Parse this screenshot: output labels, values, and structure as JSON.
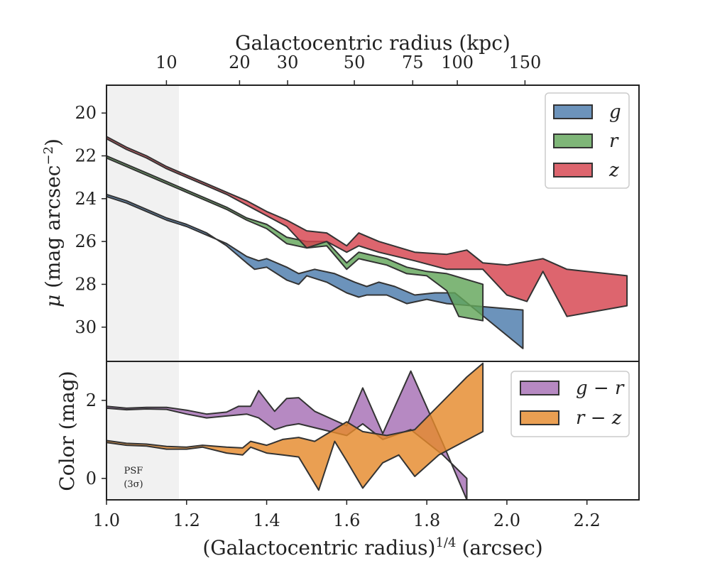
{
  "chart_data": [
    {
      "panel": "top",
      "type": "area",
      "top_axis": {
        "label": "Galactocentric radius (kpc)",
        "tick_labels": [
          "10",
          "20",
          "30",
          "50",
          "75",
          "100",
          "150"
        ],
        "tick_values_kpc": [
          10,
          20,
          30,
          50,
          75,
          100,
          150
        ]
      },
      "ylabel": "μ (mag arcsec⁻²)",
      "ylim": [
        31.6,
        18.7
      ],
      "y_inverted": true,
      "yticks": [
        20,
        22,
        24,
        26,
        28,
        30
      ],
      "xlim": [
        1.0,
        2.33
      ],
      "shaded_region": {
        "x": [
          1.0,
          1.18
        ],
        "color": "#f1f1f1"
      },
      "legend": {
        "placement": "top-right",
        "entries": [
          "g",
          "r",
          "z"
        ]
      },
      "series": [
        {
          "name": "g",
          "color": "#4c7bac",
          "upper": [
            [
              1.0,
              23.8
            ],
            [
              1.05,
              24.1
            ],
            [
              1.1,
              24.5
            ],
            [
              1.15,
              24.9
            ],
            [
              1.2,
              25.2
            ],
            [
              1.25,
              25.6
            ],
            [
              1.3,
              26.2
            ],
            [
              1.35,
              27.0
            ],
            [
              1.37,
              27.3
            ],
            [
              1.4,
              27.2
            ],
            [
              1.45,
              27.8
            ],
            [
              1.48,
              28.0
            ],
            [
              1.5,
              27.6
            ],
            [
              1.55,
              27.9
            ],
            [
              1.6,
              28.4
            ],
            [
              1.63,
              28.6
            ],
            [
              1.65,
              28.5
            ],
            [
              1.7,
              28.5
            ],
            [
              1.75,
              28.9
            ],
            [
              1.8,
              28.7
            ],
            [
              1.85,
              28.9
            ],
            [
              2.04,
              29.2
            ]
          ],
          "lower": [
            [
              1.0,
              23.9
            ],
            [
              1.05,
              24.2
            ],
            [
              1.1,
              24.6
            ],
            [
              1.15,
              25.0
            ],
            [
              1.2,
              25.3
            ],
            [
              1.25,
              25.7
            ],
            [
              1.3,
              26.1
            ],
            [
              1.35,
              26.7
            ],
            [
              1.38,
              26.9
            ],
            [
              1.4,
              26.8
            ],
            [
              1.45,
              27.2
            ],
            [
              1.48,
              27.5
            ],
            [
              1.52,
              27.3
            ],
            [
              1.57,
              27.5
            ],
            [
              1.62,
              27.9
            ],
            [
              1.65,
              28.1
            ],
            [
              1.68,
              27.9
            ],
            [
              1.72,
              28.1
            ],
            [
              1.77,
              28.5
            ],
            [
              1.82,
              28.4
            ],
            [
              1.87,
              28.4
            ],
            [
              2.04,
              31.0
            ]
          ]
        },
        {
          "name": "r",
          "color": "#63a65a",
          "upper": [
            [
              1.0,
              22.0
            ],
            [
              1.05,
              22.4
            ],
            [
              1.1,
              22.8
            ],
            [
              1.15,
              23.2
            ],
            [
              1.2,
              23.6
            ],
            [
              1.25,
              24.0
            ],
            [
              1.3,
              24.4
            ],
            [
              1.35,
              24.9
            ],
            [
              1.4,
              25.2
            ],
            [
              1.45,
              25.8
            ],
            [
              1.5,
              26.0
            ],
            [
              1.55,
              26.0
            ],
            [
              1.6,
              27.0
            ],
            [
              1.63,
              26.5
            ],
            [
              1.7,
              26.8
            ],
            [
              1.75,
              27.2
            ],
            [
              1.8,
              27.4
            ],
            [
              1.85,
              27.5
            ],
            [
              1.94,
              28.0
            ]
          ],
          "lower": [
            [
              1.0,
              22.1
            ],
            [
              1.05,
              22.5
            ],
            [
              1.1,
              22.9
            ],
            [
              1.15,
              23.3
            ],
            [
              1.2,
              23.7
            ],
            [
              1.25,
              24.1
            ],
            [
              1.3,
              24.5
            ],
            [
              1.35,
              25.0
            ],
            [
              1.4,
              25.4
            ],
            [
              1.45,
              26.1
            ],
            [
              1.5,
              26.3
            ],
            [
              1.55,
              26.2
            ],
            [
              1.6,
              27.3
            ],
            [
              1.63,
              26.8
            ],
            [
              1.7,
              27.1
            ],
            [
              1.75,
              27.5
            ],
            [
              1.8,
              27.6
            ],
            [
              1.85,
              28.3
            ],
            [
              1.88,
              29.5
            ],
            [
              1.94,
              29.7
            ]
          ]
        },
        {
          "name": "z",
          "color": "#d5434e",
          "upper": [
            [
              1.0,
              21.1
            ],
            [
              1.05,
              21.6
            ],
            [
              1.1,
              22.0
            ],
            [
              1.15,
              22.5
            ],
            [
              1.2,
              22.9
            ],
            [
              1.25,
              23.3
            ],
            [
              1.3,
              23.7
            ],
            [
              1.35,
              24.1
            ],
            [
              1.4,
              24.6
            ],
            [
              1.45,
              25.0
            ],
            [
              1.5,
              25.5
            ],
            [
              1.55,
              25.6
            ],
            [
              1.6,
              26.2
            ],
            [
              1.63,
              25.6
            ],
            [
              1.68,
              26.0
            ],
            [
              1.77,
              26.5
            ],
            [
              1.85,
              26.6
            ],
            [
              1.9,
              26.4
            ],
            [
              1.94,
              27.0
            ],
            [
              2.0,
              27.1
            ],
            [
              2.09,
              26.8
            ],
            [
              2.15,
              27.3
            ],
            [
              2.3,
              27.6
            ]
          ],
          "lower": [
            [
              1.0,
              21.2
            ],
            [
              1.05,
              21.7
            ],
            [
              1.1,
              22.1
            ],
            [
              1.15,
              22.6
            ],
            [
              1.2,
              23.0
            ],
            [
              1.25,
              23.4
            ],
            [
              1.3,
              23.8
            ],
            [
              1.35,
              24.3
            ],
            [
              1.4,
              24.8
            ],
            [
              1.45,
              25.3
            ],
            [
              1.5,
              26.3
            ],
            [
              1.55,
              26.0
            ],
            [
              1.6,
              26.5
            ],
            [
              1.63,
              26.2
            ],
            [
              1.68,
              26.5
            ],
            [
              1.77,
              26.9
            ],
            [
              1.85,
              27.3
            ],
            [
              1.94,
              27.3
            ],
            [
              2.0,
              28.5
            ],
            [
              2.05,
              28.8
            ],
            [
              2.09,
              27.4
            ],
            [
              2.15,
              29.5
            ],
            [
              2.3,
              29.0
            ]
          ]
        }
      ]
    },
    {
      "panel": "bottom",
      "type": "area",
      "xlabel": "(Galactocentric radius)^1/4 (arcsec)",
      "xlabel_base": "(Galactocentric radius)",
      "xlabel_sup": "1/4",
      "xlabel_unit": "(arcsec)",
      "xlim": [
        1.0,
        2.33
      ],
      "xticks": [
        1.0,
        1.2,
        1.4,
        1.6,
        1.8,
        2.0,
        2.2
      ],
      "xtick_labels": [
        "1.0",
        "1.2",
        "1.4",
        "1.6",
        "1.8",
        "2.0",
        "2.2"
      ],
      "ylabel": "Color (mag)",
      "ylim": [
        -0.55,
        3.0
      ],
      "yticks": [
        0,
        2
      ],
      "shaded_region": {
        "x": [
          1.0,
          1.18
        ],
        "color": "#f1f1f1"
      },
      "annotation": {
        "line1": "PSF",
        "line2": "(3σ)"
      },
      "legend": {
        "placement": "top-right",
        "entries": [
          "g − r",
          "r − z"
        ]
      },
      "series": [
        {
          "name": "g − r",
          "color": "#a66fb5",
          "upper": [
            [
              1.0,
              1.85
            ],
            [
              1.05,
              1.8
            ],
            [
              1.1,
              1.82
            ],
            [
              1.15,
              1.82
            ],
            [
              1.2,
              1.75
            ],
            [
              1.25,
              1.65
            ],
            [
              1.3,
              1.7
            ],
            [
              1.33,
              1.85
            ],
            [
              1.36,
              1.85
            ],
            [
              1.38,
              2.25
            ],
            [
              1.42,
              1.72
            ],
            [
              1.45,
              2.05
            ],
            [
              1.48,
              2.07
            ],
            [
              1.52,
              1.72
            ],
            [
              1.6,
              1.35
            ],
            [
              1.64,
              2.32
            ],
            [
              1.69,
              1.15
            ],
            [
              1.76,
              2.75
            ],
            [
              1.84,
              0.9
            ],
            [
              1.9,
              -0.55
            ]
          ],
          "lower": [
            [
              1.0,
              1.8
            ],
            [
              1.05,
              1.76
            ],
            [
              1.1,
              1.78
            ],
            [
              1.15,
              1.77
            ],
            [
              1.2,
              1.65
            ],
            [
              1.25,
              1.55
            ],
            [
              1.3,
              1.6
            ],
            [
              1.35,
              1.65
            ],
            [
              1.38,
              1.55
            ],
            [
              1.42,
              1.25
            ],
            [
              1.45,
              1.35
            ],
            [
              1.48,
              1.4
            ],
            [
              1.52,
              1.3
            ],
            [
              1.6,
              1.1
            ],
            [
              1.64,
              1.4
            ],
            [
              1.69,
              1.0
            ],
            [
              1.76,
              1.25
            ],
            [
              1.84,
              0.6
            ],
            [
              1.9,
              0.0
            ]
          ]
        },
        {
          "name": "r − z",
          "color": "#e58a2c",
          "upper": [
            [
              1.0,
              0.97
            ],
            [
              1.05,
              0.9
            ],
            [
              1.1,
              0.88
            ],
            [
              1.15,
              0.82
            ],
            [
              1.2,
              0.8
            ],
            [
              1.24,
              0.85
            ],
            [
              1.3,
              0.8
            ],
            [
              1.34,
              0.78
            ],
            [
              1.36,
              0.95
            ],
            [
              1.4,
              0.85
            ],
            [
              1.44,
              1.0
            ],
            [
              1.48,
              1.05
            ],
            [
              1.52,
              0.95
            ],
            [
              1.6,
              1.45
            ],
            [
              1.64,
              1.2
            ],
            [
              1.7,
              1.1
            ],
            [
              1.77,
              1.25
            ],
            [
              1.9,
              2.6
            ],
            [
              1.94,
              2.95
            ]
          ],
          "lower": [
            [
              1.0,
              0.92
            ],
            [
              1.05,
              0.85
            ],
            [
              1.1,
              0.83
            ],
            [
              1.15,
              0.75
            ],
            [
              1.2,
              0.75
            ],
            [
              1.24,
              0.8
            ],
            [
              1.3,
              0.65
            ],
            [
              1.34,
              0.6
            ],
            [
              1.36,
              0.8
            ],
            [
              1.4,
              0.65
            ],
            [
              1.44,
              0.6
            ],
            [
              1.48,
              0.55
            ],
            [
              1.53,
              -0.3
            ],
            [
              1.57,
              0.95
            ],
            [
              1.6,
              0.45
            ],
            [
              1.64,
              -0.25
            ],
            [
              1.69,
              0.4
            ],
            [
              1.73,
              0.6
            ],
            [
              1.77,
              0.05
            ],
            [
              1.83,
              0.6
            ],
            [
              1.94,
              1.2
            ]
          ]
        }
      ]
    }
  ]
}
